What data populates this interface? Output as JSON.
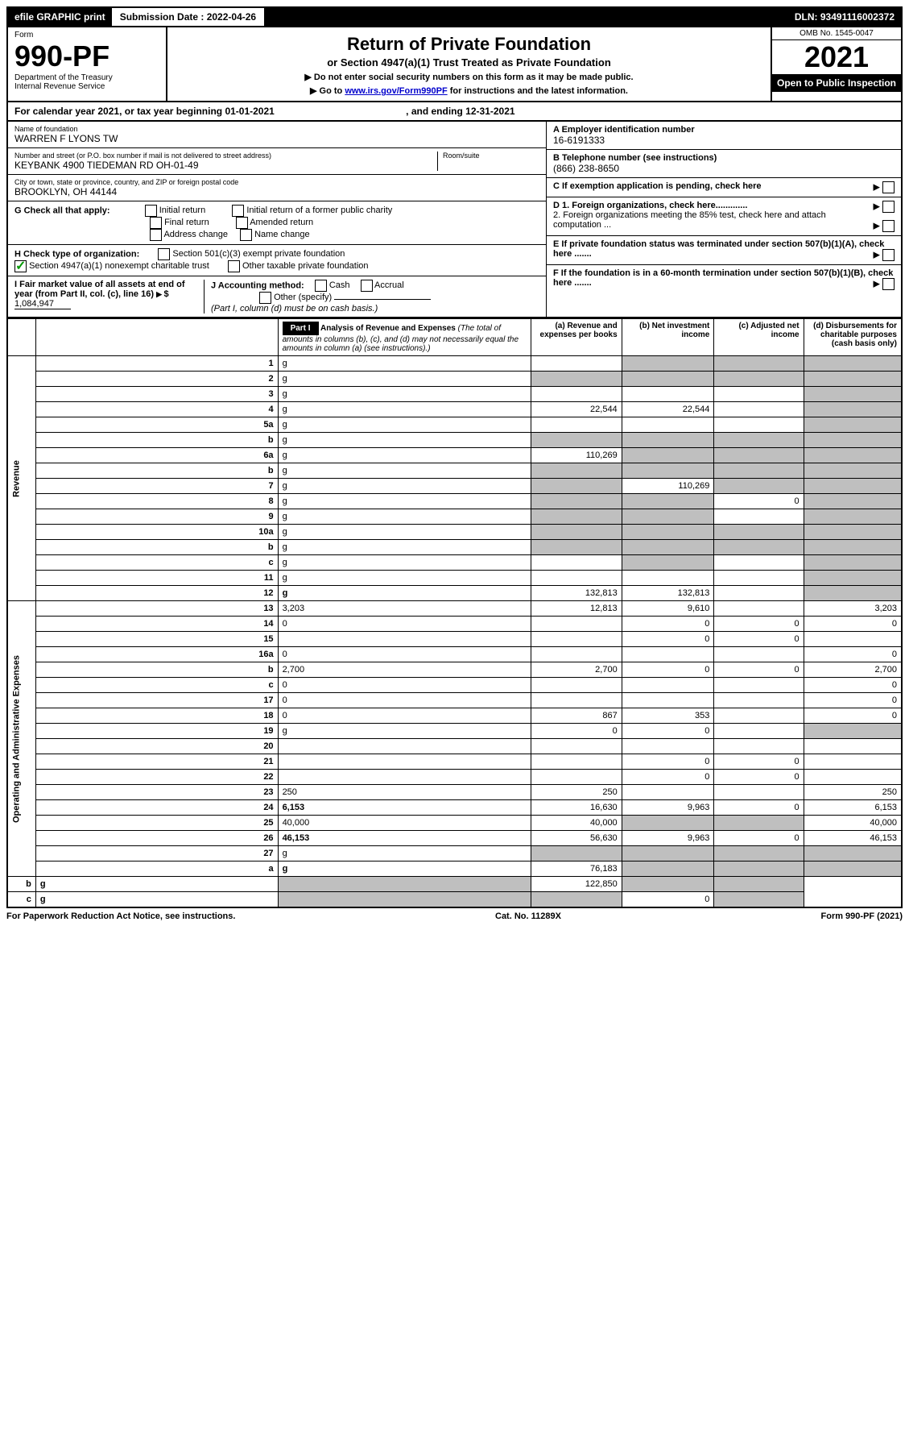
{
  "top": {
    "efile": "efile GRAPHIC print",
    "submission_label": "Submission Date : 2022-04-26",
    "dln": "DLN: 93491116002372"
  },
  "header": {
    "form_small": "Form",
    "form_num": "990-PF",
    "dept": "Department of the Treasury",
    "irs": "Internal Revenue Service",
    "title": "Return of Private Foundation",
    "subtitle": "or Section 4947(a)(1) Trust Treated as Private Foundation",
    "instr1": "▶ Do not enter social security numbers on this form as it may be made public.",
    "instr2_pre": "▶ Go to ",
    "instr2_link": "www.irs.gov/Form990PF",
    "instr2_post": " for instructions and the latest information.",
    "omb": "OMB No. 1545-0047",
    "year": "2021",
    "open": "Open to Public Inspection"
  },
  "calendar": {
    "text": "For calendar year 2021, or tax year beginning 01-01-2021",
    "ending": ", and ending 12-31-2021"
  },
  "info": {
    "name_label": "Name of foundation",
    "name": "WARREN F LYONS TW",
    "addr_label": "Number and street (or P.O. box number if mail is not delivered to street address)",
    "addr": "KEYBANK 4900 TIEDEMAN RD OH-01-49",
    "room_label": "Room/suite",
    "city_label": "City or town, state or province, country, and ZIP or foreign postal code",
    "city": "BROOKLYN, OH  44144",
    "ein_label": "A Employer identification number",
    "ein": "16-6191333",
    "phone_label": "B Telephone number (see instructions)",
    "phone": "(866) 238-8650",
    "c_label": "C If exemption application is pending, check here",
    "d1": "D 1. Foreign organizations, check here.............",
    "d2": "2. Foreign organizations meeting the 85% test, check here and attach computation ...",
    "e": "E  If private foundation status was terminated under section 507(b)(1)(A), check here .......",
    "f": "F  If the foundation is in a 60-month termination under section 507(b)(1)(B), check here .......",
    "g_label": "G Check all that apply:",
    "g_opts": [
      "Initial return",
      "Initial return of a former public charity",
      "Final return",
      "Amended return",
      "Address change",
      "Name change"
    ],
    "h_label": "H Check type of organization:",
    "h_opts": [
      "Section 501(c)(3) exempt private foundation",
      "Section 4947(a)(1) nonexempt charitable trust",
      "Other taxable private foundation"
    ],
    "i_label": "I Fair market value of all assets at end of year (from Part II, col. (c), line 16)",
    "i_val": "1,084,947",
    "j_label": "J Accounting method:",
    "j_opts": [
      "Cash",
      "Accrual",
      "Other (specify)"
    ],
    "j_note": "(Part I, column (d) must be on cash basis.)"
  },
  "part1": {
    "label": "Part I",
    "title": "Analysis of Revenue and Expenses",
    "note": "(The total of amounts in columns (b), (c), and (d) may not necessarily equal the amounts in column (a) (see instructions).)",
    "col_a": "(a)  Revenue and expenses per books",
    "col_b": "(b)  Net investment income",
    "col_c": "(c)  Adjusted net income",
    "col_d": "(d)  Disbursements for charitable purposes (cash basis only)",
    "vert_rev": "Revenue",
    "vert_exp": "Operating and Administrative Expenses"
  },
  "rows": [
    {
      "n": "1",
      "d": "g",
      "a": "",
      "b": "g",
      "c": "g"
    },
    {
      "n": "2",
      "d": "g",
      "a": "g",
      "b": "g",
      "c": "g"
    },
    {
      "n": "3",
      "d": "g",
      "a": "",
      "b": "",
      "c": ""
    },
    {
      "n": "4",
      "d": "g",
      "a": "22,544",
      "b": "22,544",
      "c": ""
    },
    {
      "n": "5a",
      "d": "g",
      "a": "",
      "b": "",
      "c": ""
    },
    {
      "n": "b",
      "d": "g",
      "a": "g",
      "b": "g",
      "c": "g",
      "inline": "____________"
    },
    {
      "n": "6a",
      "d": "g",
      "a": "110,269",
      "b": "g",
      "c": "g"
    },
    {
      "n": "b",
      "d": "g",
      "a": "g",
      "b": "g",
      "c": "g"
    },
    {
      "n": "7",
      "d": "g",
      "a": "g",
      "b": "110,269",
      "c": "g"
    },
    {
      "n": "8",
      "d": "g",
      "a": "g",
      "b": "g",
      "c": "0"
    },
    {
      "n": "9",
      "d": "g",
      "a": "g",
      "b": "g",
      "c": ""
    },
    {
      "n": "10a",
      "d": "g",
      "a": "g",
      "b": "g",
      "c": "g"
    },
    {
      "n": "b",
      "d": "g",
      "a": "g",
      "b": "g",
      "c": "g"
    },
    {
      "n": "c",
      "d": "g",
      "a": "",
      "b": "g",
      "c": ""
    },
    {
      "n": "11",
      "d": "g",
      "a": "",
      "b": "",
      "c": ""
    },
    {
      "n": "12",
      "d": "g",
      "a": "132,813",
      "b": "132,813",
      "c": "",
      "bold": true
    },
    {
      "n": "13",
      "d": "3,203",
      "a": "12,813",
      "b": "9,610",
      "c": ""
    },
    {
      "n": "14",
      "d": "0",
      "a": "",
      "b": "0",
      "c": "0"
    },
    {
      "n": "15",
      "d": "",
      "a": "",
      "b": "0",
      "c": "0"
    },
    {
      "n": "16a",
      "d": "0",
      "a": "",
      "b": "",
      "c": ""
    },
    {
      "n": "b",
      "d": "2,700",
      "a": "2,700",
      "b": "0",
      "c": "0"
    },
    {
      "n": "c",
      "d": "0",
      "a": "",
      "b": "",
      "c": ""
    },
    {
      "n": "17",
      "d": "0",
      "a": "",
      "b": "",
      "c": ""
    },
    {
      "n": "18",
      "d": "0",
      "a": "867",
      "b": "353",
      "c": ""
    },
    {
      "n": "19",
      "d": "g",
      "a": "0",
      "b": "0",
      "c": ""
    },
    {
      "n": "20",
      "d": "",
      "a": "",
      "b": "",
      "c": ""
    },
    {
      "n": "21",
      "d": "",
      "a": "",
      "b": "0",
      "c": "0"
    },
    {
      "n": "22",
      "d": "",
      "a": "",
      "b": "0",
      "c": "0"
    },
    {
      "n": "23",
      "d": "250",
      "a": "250",
      "b": "",
      "c": ""
    },
    {
      "n": "24",
      "d": "6,153",
      "a": "16,630",
      "b": "9,963",
      "c": "0",
      "bold": true
    },
    {
      "n": "25",
      "d": "40,000",
      "a": "40,000",
      "b": "g",
      "c": "g"
    },
    {
      "n": "26",
      "d": "46,153",
      "a": "56,630",
      "b": "9,963",
      "c": "0",
      "bold": true
    },
    {
      "n": "27",
      "d": "g",
      "a": "g",
      "b": "g",
      "c": "g"
    },
    {
      "n": "a",
      "d": "g",
      "a": "76,183",
      "b": "g",
      "c": "g",
      "bold": true
    },
    {
      "n": "b",
      "d": "g",
      "a": "g",
      "b": "122,850",
      "c": "g",
      "bold": true
    },
    {
      "n": "c",
      "d": "g",
      "a": "g",
      "b": "g",
      "c": "0",
      "bold": true
    }
  ],
  "footer": {
    "left": "For Paperwork Reduction Act Notice, see instructions.",
    "mid": "Cat. No. 11289X",
    "right": "Form 990-PF (2021)"
  },
  "colors": {
    "grey": "#bfbfbf",
    "link": "#0000cc",
    "check": "#009900"
  }
}
